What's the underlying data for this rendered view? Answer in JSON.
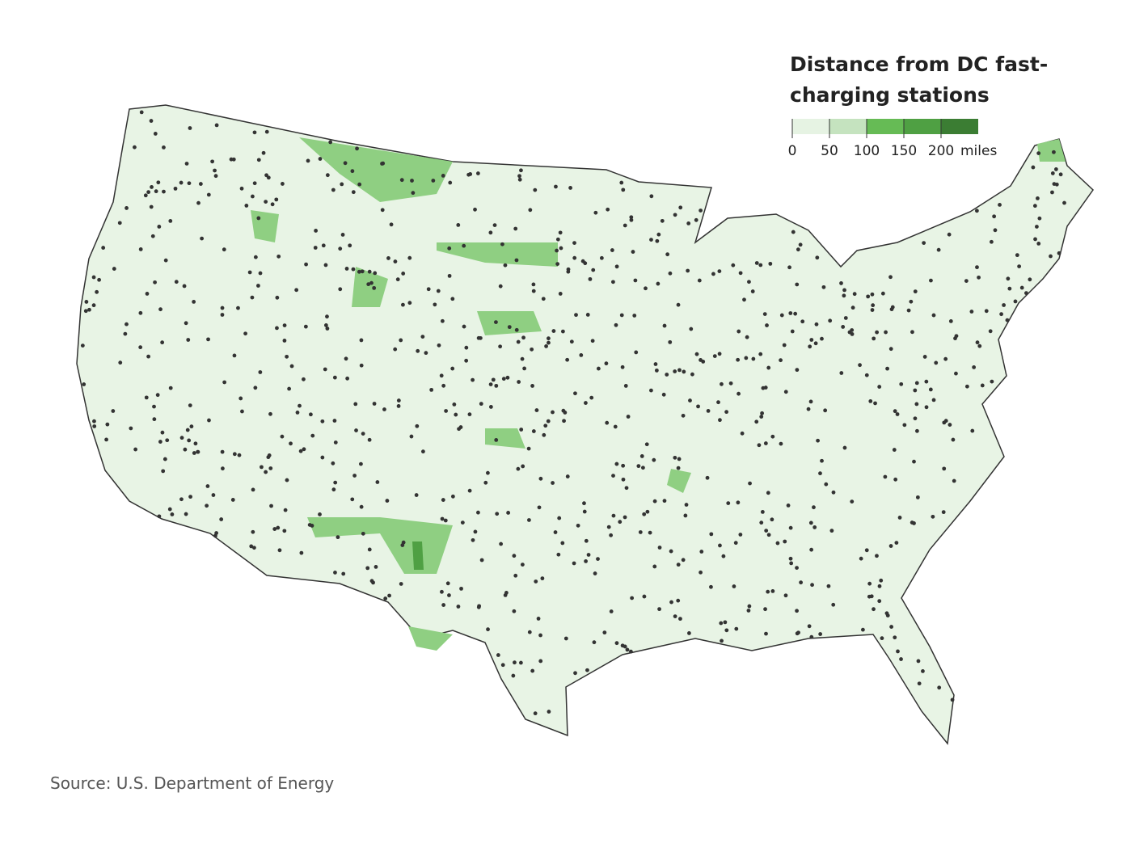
{
  "title": [
    "Distance from DC fast-",
    "charging stations"
  ],
  "legend": {
    "bins": [
      0,
      50,
      100,
      150,
      200
    ],
    "unit": "miles",
    "colors": [
      "#e6f3e3",
      "#c5e3bf",
      "#66bb55",
      "#4fa043",
      "#3b7d33"
    ]
  },
  "source": "Source: U.S. Department of Energy"
}
